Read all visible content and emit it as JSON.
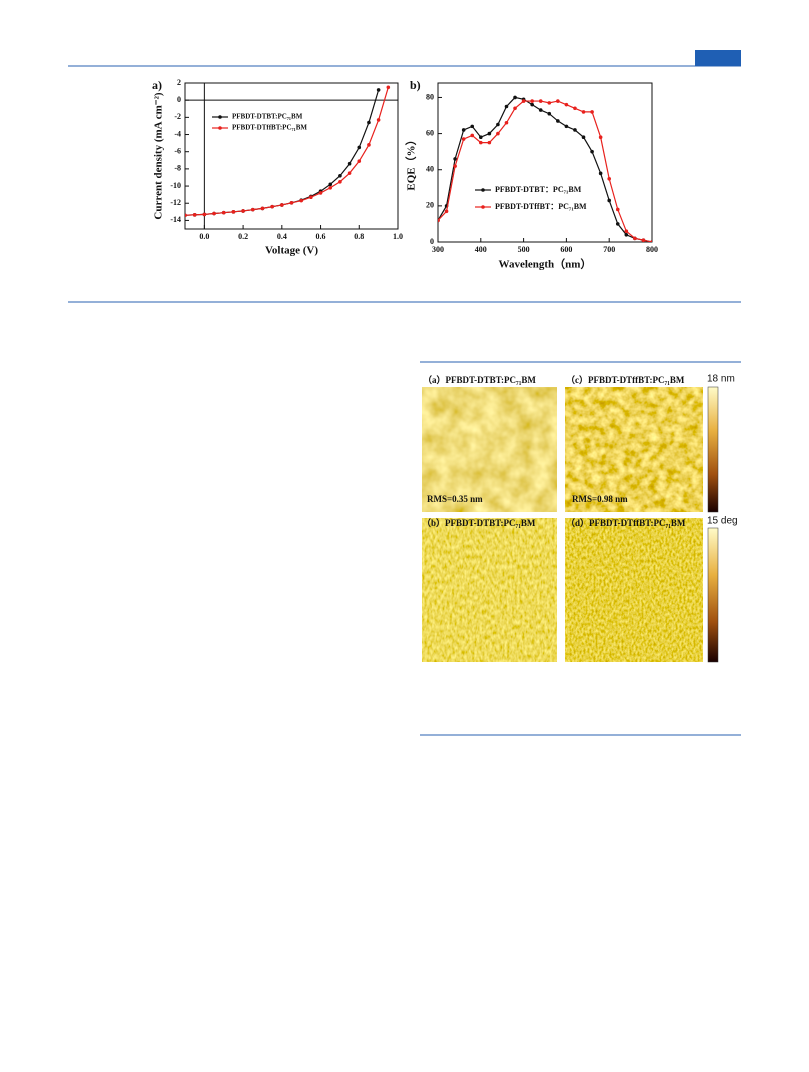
{
  "chart_data": [
    {
      "type": "line",
      "panel_label": "a)",
      "x_label": "Voltage (V)",
      "y_label": "Current density (mA cm⁻²)",
      "x": [
        -0.1,
        -0.05,
        0,
        0.05,
        0.1,
        0.15,
        0.2,
        0.25,
        0.3,
        0.35,
        0.4,
        0.45,
        0.5,
        0.55,
        0.6,
        0.65,
        0.7,
        0.75,
        0.8,
        0.85,
        0.9,
        0.95
      ],
      "series": [
        {
          "name": "PFBDT-DTBT:PC₇₁BM",
          "color": "#111111",
          "values": [
            -13.4,
            -13.35,
            -13.3,
            -13.2,
            -13.1,
            -13.0,
            -12.9,
            -12.75,
            -12.6,
            -12.4,
            -12.2,
            -11.95,
            -11.65,
            -11.2,
            -10.6,
            -9.8,
            -8.8,
            -7.4,
            -5.5,
            -2.6,
            1.2,
            null
          ]
        },
        {
          "name": "PFBDT-DTffBT:PC₇₁BM",
          "color": "#e8211d",
          "values": [
            -13.4,
            -13.35,
            -13.3,
            -13.2,
            -13.1,
            -13.0,
            -12.9,
            -12.75,
            -12.6,
            -12.4,
            -12.2,
            -11.95,
            -11.7,
            -11.3,
            -10.8,
            -10.2,
            -9.5,
            -8.5,
            -7.1,
            -5.2,
            -2.3,
            1.5
          ]
        }
      ],
      "xlim": [
        -0.1,
        1.0
      ],
      "xticks": [
        {
          "value": 0,
          "label": "0.0"
        },
        0.2,
        0.4,
        0.6,
        0.8,
        {
          "value": 1,
          "label": "1.0"
        }
      ],
      "ylim": [
        -15,
        2
      ],
      "yticks": [
        2,
        0,
        -2,
        -4,
        -6,
        -8,
        -10,
        -12,
        -14
      ],
      "zero_lines": true,
      "legend": "upper-left"
    },
    {
      "type": "line",
      "panel_label": "b)",
      "x_label": "Wavelength（nm）",
      "y_label": "EQE（%）",
      "x": [
        300,
        320,
        340,
        360,
        380,
        400,
        420,
        440,
        460,
        480,
        500,
        520,
        540,
        560,
        580,
        600,
        620,
        640,
        660,
        680,
        700,
        720,
        740,
        760,
        780,
        800
      ],
      "series": [
        {
          "name": "PFBDT-DTBT：PC₇₁BM",
          "color": "#111111",
          "values": [
            12,
            20,
            46,
            62,
            64,
            58,
            60,
            65,
            75,
            80,
            79,
            76,
            73,
            71,
            67,
            64,
            62,
            58,
            50,
            38,
            23,
            10,
            4,
            2,
            1,
            0
          ]
        },
        {
          "name": "PFBDT-DTffBT：PC₇₁BM",
          "color": "#e8211d",
          "values": [
            12,
            17,
            42,
            57,
            59,
            55,
            55,
            60,
            66,
            74,
            78,
            78,
            78,
            77,
            78,
            76,
            74,
            72,
            72,
            58,
            35,
            18,
            6,
            2,
            1,
            0
          ]
        }
      ],
      "xlim": [
        300,
        800
      ],
      "xticks": [
        300,
        400,
        500,
        600,
        700,
        800
      ],
      "ylim": [
        0,
        88
      ],
      "yticks": [
        0,
        20,
        40,
        60,
        80
      ],
      "zero_lines": false,
      "legend": "lower-center"
    }
  ],
  "afm": {
    "panels": [
      {
        "label": "（a）PFBDT-DTBT:PC₇₁BM",
        "rms": "RMS=0.35 nm"
      },
      {
        "label": "（c）PFBDT-DTffBT:PC₇₁BM",
        "rms": "RMS=0.98 nm"
      },
      {
        "label": "（b）PFBDT-DTBT:PC₇₁BM"
      },
      {
        "label": "（d）PFBDT-DTffBT:PC₇₁BM"
      }
    ],
    "scales": [
      "18 nm",
      "15 deg"
    ]
  }
}
